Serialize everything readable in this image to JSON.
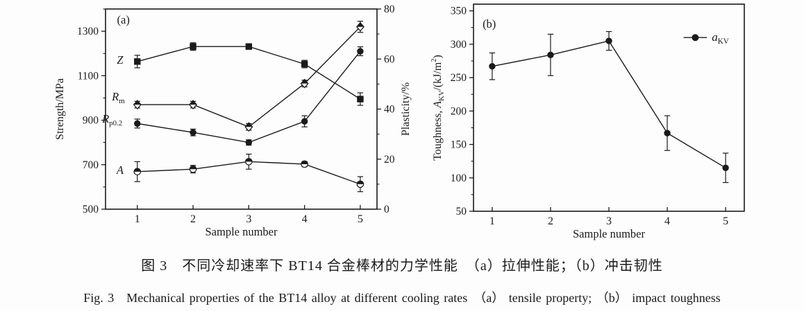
{
  "figure": {
    "caption_zh": "图 3　不同冷却速率下 BT14 合金棒材的力学性能　（a）拉伸性能；（b）冲击韧性",
    "caption_en": "Fig. 3　Mechanical properties of the BT14 alloy at different cooling rates　（a） tensile property; （b） impact toughness"
  },
  "colors": {
    "ink": "#1a1a1a",
    "background": "#fdfdfd"
  },
  "chart_data": [
    {
      "type": "line",
      "panel_label": "(a)",
      "xlabel": "Sample number",
      "x": [
        1,
        2,
        3,
        4,
        5
      ],
      "x_range": [
        0.43,
        5.3
      ],
      "grid": false,
      "axes": {
        "left": {
          "title_segments": [
            {
              "t": "Strength/MPa"
            }
          ],
          "range": [
            500,
            1400
          ],
          "labeled_ticks": [
            500,
            700,
            900,
            1100,
            1300
          ],
          "minor_step": 100
        },
        "right": {
          "title_segments": [
            {
              "t": "Plasticity/%"
            }
          ],
          "range": [
            0,
            80
          ],
          "labeled_ticks": [
            0,
            20,
            40,
            60,
            80
          ],
          "minor_step": 10
        }
      },
      "series": [
        {
          "name": "Z",
          "axis": "right",
          "marker": "square-filled",
          "values": [
            59,
            65,
            65,
            58,
            44
          ],
          "errors": [
            2.5,
            1.5,
            1,
            1.5,
            2.5
          ]
        },
        {
          "name": "Rm",
          "axis": "left",
          "marker": "diamond-half",
          "values": [
            970,
            970,
            870,
            1065,
            1320
          ],
          "errors": [
            15,
            15,
            15,
            15,
            25
          ]
        },
        {
          "name": "Rp0.2",
          "axis": "left",
          "marker": "circle-filled",
          "values": [
            885,
            845,
            800,
            895,
            1210
          ],
          "errors": [
            20,
            15,
            12,
            25,
            20
          ]
        },
        {
          "name": "A",
          "axis": "right",
          "marker": "circle-half",
          "values": [
            15,
            16,
            19,
            18,
            10
          ],
          "errors": [
            4,
            1.5,
            3,
            1,
            3
          ]
        }
      ],
      "annotations": [
        {
          "segments": [
            {
              "t": "(a)"
            }
          ],
          "x": 0.75,
          "y": 1350,
          "axis": "left"
        },
        {
          "segments": [
            {
              "t": "Z",
              "i": 1
            }
          ],
          "x": 0.69,
          "y": 59.5,
          "axis": "right"
        },
        {
          "segments": [
            {
              "t": "R",
              "i": 1
            },
            {
              "t": "m",
              "sub": 1
            }
          ],
          "x": 0.66,
          "y": 1005,
          "axis": "left"
        },
        {
          "segments": [
            {
              "t": "R",
              "i": 1
            },
            {
              "t": "p0.2",
              "sub": 1
            }
          ],
          "x": 0.55,
          "y": 905,
          "axis": "left"
        },
        {
          "segments": [
            {
              "t": "A",
              "i": 1
            }
          ],
          "x": 0.69,
          "y": 15.5,
          "axis": "right"
        }
      ]
    },
    {
      "type": "line",
      "panel_label": "(b)",
      "xlabel": "Sample number",
      "x": [
        1,
        2,
        3,
        4,
        5
      ],
      "x_range": [
        0.68,
        5.32
      ],
      "grid": false,
      "axes": {
        "left": {
          "title_segments": [
            {
              "t": "Toughness, "
            },
            {
              "t": "A",
              "i": 1
            },
            {
              "t": "KV",
              "sub": 1
            },
            {
              "t": "/(kJ/m"
            },
            {
              "t": "2",
              "sup": 1
            },
            {
              "t": ")"
            }
          ],
          "range": [
            50,
            360
          ],
          "labeled_ticks": [
            50,
            100,
            150,
            200,
            250,
            300,
            350
          ],
          "minor_step": 25
        }
      },
      "series": [
        {
          "name": "aKV",
          "axis": "left",
          "marker": "circle-filled",
          "values": [
            267,
            284,
            305,
            167,
            115
          ],
          "errors": [
            20,
            31,
            14,
            26,
            22
          ]
        }
      ],
      "legend": {
        "x1": 4.28,
        "x2": 4.68,
        "y": 310,
        "marker": "circle-filled",
        "segments": [
          {
            "t": "a",
            "i": 1
          },
          {
            "t": "KV",
            "sub": 1
          }
        ]
      },
      "annotations": [
        {
          "segments": [
            {
              "t": "(b)"
            }
          ],
          "x": 0.95,
          "y": 330,
          "axis": "left"
        }
      ]
    }
  ]
}
